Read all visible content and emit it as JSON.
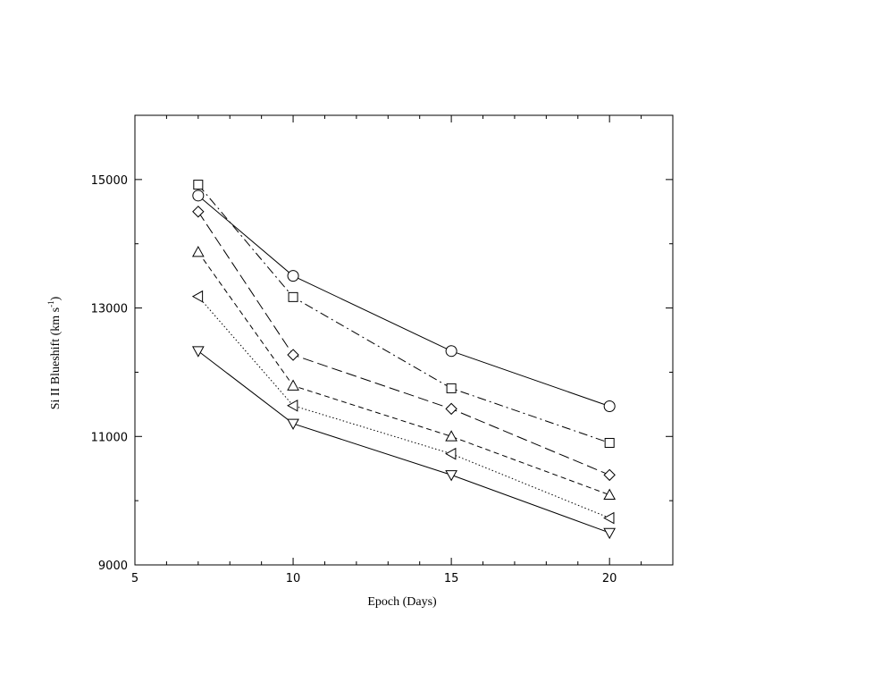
{
  "chart_data": {
    "type": "line",
    "title": "",
    "xlabel": "Epoch (Days)",
    "ylabel": {
      "main": "Si II Blueshift (km s",
      "superscript": "-1",
      "close": ")"
    },
    "xlim": [
      5,
      22
    ],
    "ylim": [
      9000,
      16000
    ],
    "xticks": [
      5,
      10,
      15,
      20
    ],
    "yticks": [
      9000,
      11000,
      13000,
      15000
    ],
    "grid": false,
    "legend": "none",
    "x": [
      7,
      10,
      15,
      20
    ],
    "series": [
      {
        "marker": "circle",
        "line": "solid",
        "values": [
          14750,
          13500,
          12330,
          11470
        ]
      },
      {
        "marker": "square",
        "line": "dashdot",
        "values": [
          14920,
          13170,
          11750,
          10900
        ]
      },
      {
        "marker": "diamond",
        "line": "longdash",
        "values": [
          14500,
          12270,
          11430,
          10400
        ]
      },
      {
        "marker": "triangle-up",
        "line": "dashed",
        "values": [
          13870,
          11790,
          11000,
          10090
        ]
      },
      {
        "marker": "triangle-left",
        "line": "dotted",
        "values": [
          13180,
          11480,
          10730,
          9730
        ]
      },
      {
        "marker": "triangle-down",
        "line": "solid",
        "values": [
          12330,
          11200,
          10400,
          9500
        ]
      }
    ]
  }
}
